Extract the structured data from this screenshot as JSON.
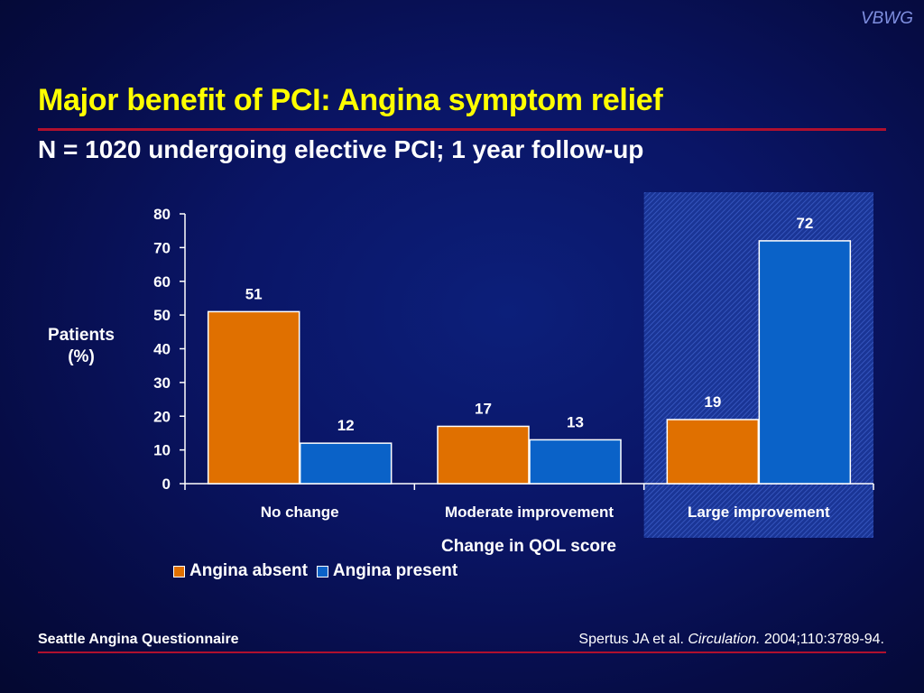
{
  "slide": {
    "logo": "VBWG",
    "title": "Major benefit of PCI: Angina symptom relief",
    "subtitle": "N = 1020 undergoing elective PCI; 1 year follow-up",
    "footer_left": "Seattle Angina Questionnaire",
    "citation": {
      "authors": "Spertus JA et al.",
      "journal": "Circulation.",
      "details": "2004;110:3789-94."
    }
  },
  "chart_data": {
    "type": "bar",
    "categories": [
      "No change",
      "Moderate improvement",
      "Large improvement"
    ],
    "series": [
      {
        "name": "Angina absent",
        "values": [
          51,
          17,
          19
        ],
        "color": "#e07000"
      },
      {
        "name": "Angina present",
        "values": [
          12,
          13,
          72
        ],
        "color": "#0a62c8"
      }
    ],
    "ylabel_line1": "Patients",
    "ylabel_line2": "(%)",
    "xlabel": "Change in QOL score",
    "ylim": [
      0,
      80
    ],
    "yticks": [
      0,
      10,
      20,
      30,
      40,
      50,
      60,
      70,
      80
    ],
    "highlight_category": "Large improvement",
    "highlight_color": "#1f3fa6",
    "legend_position": "bottom-left"
  }
}
